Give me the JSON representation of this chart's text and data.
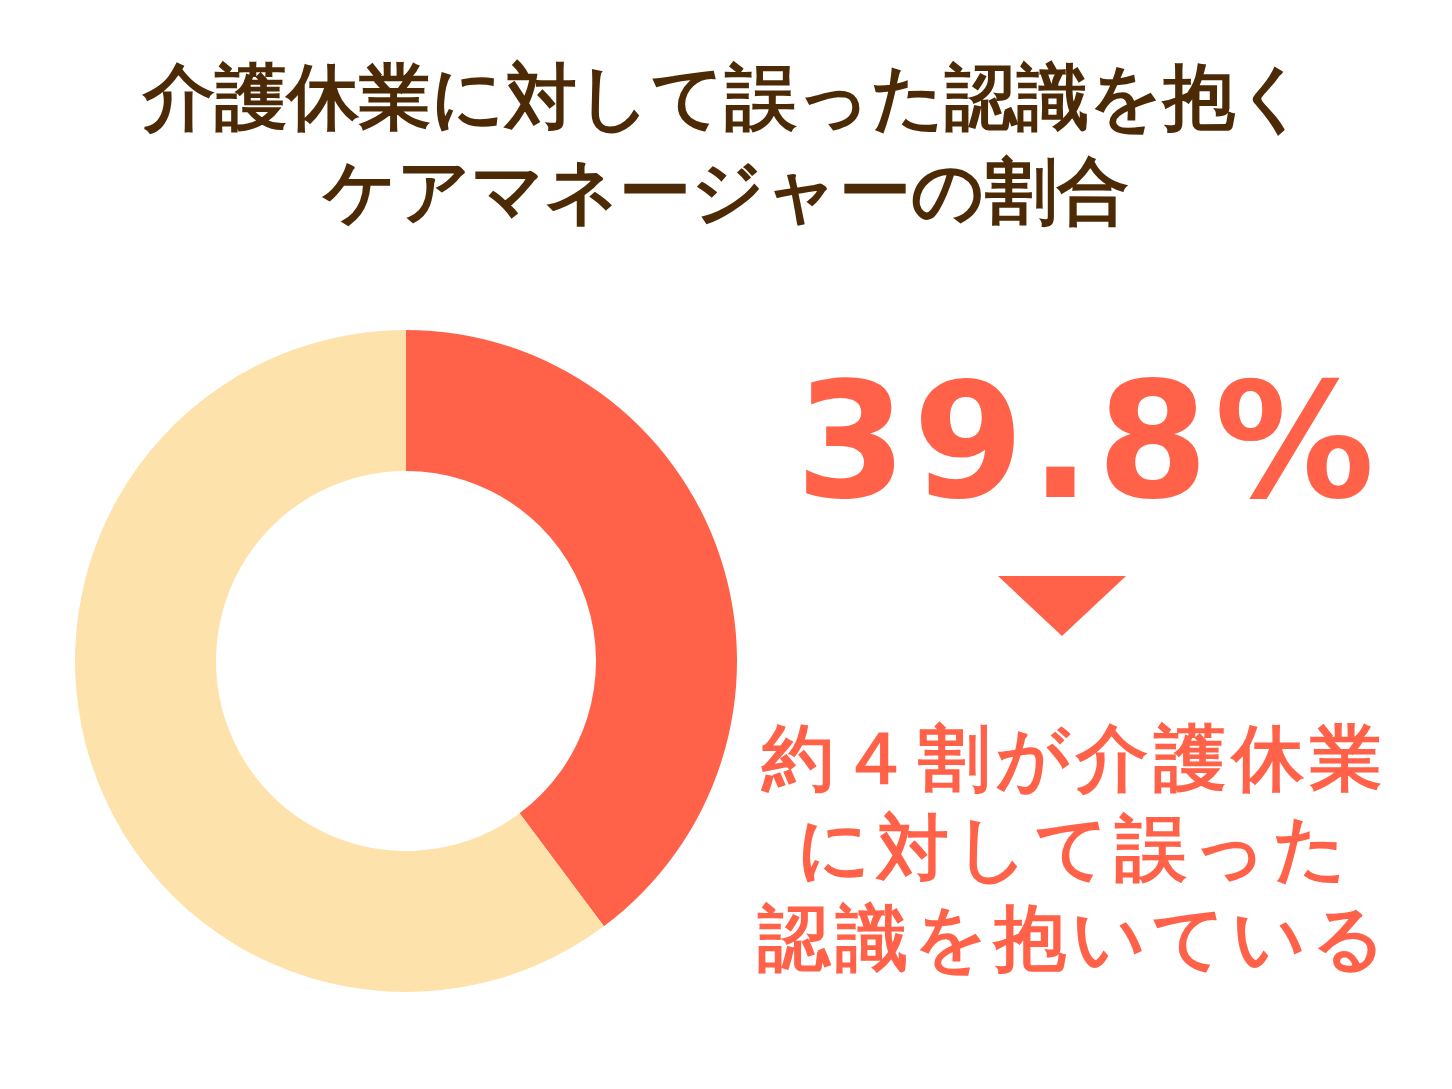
{
  "chart_data": {
    "type": "donut",
    "title": "介護休業に対して誤った認識を抱くケアマネージャーの割合",
    "categories": [
      null,
      null
    ],
    "values": [
      39.8,
      60.2
    ],
    "colors": [
      "#ff6248",
      "#fee2ab"
    ],
    "value_labels": [
      "39.8%",
      null
    ],
    "annotations": [
      "約４割が介護休業に対して誤った認識を抱いている"
    ]
  }
}
